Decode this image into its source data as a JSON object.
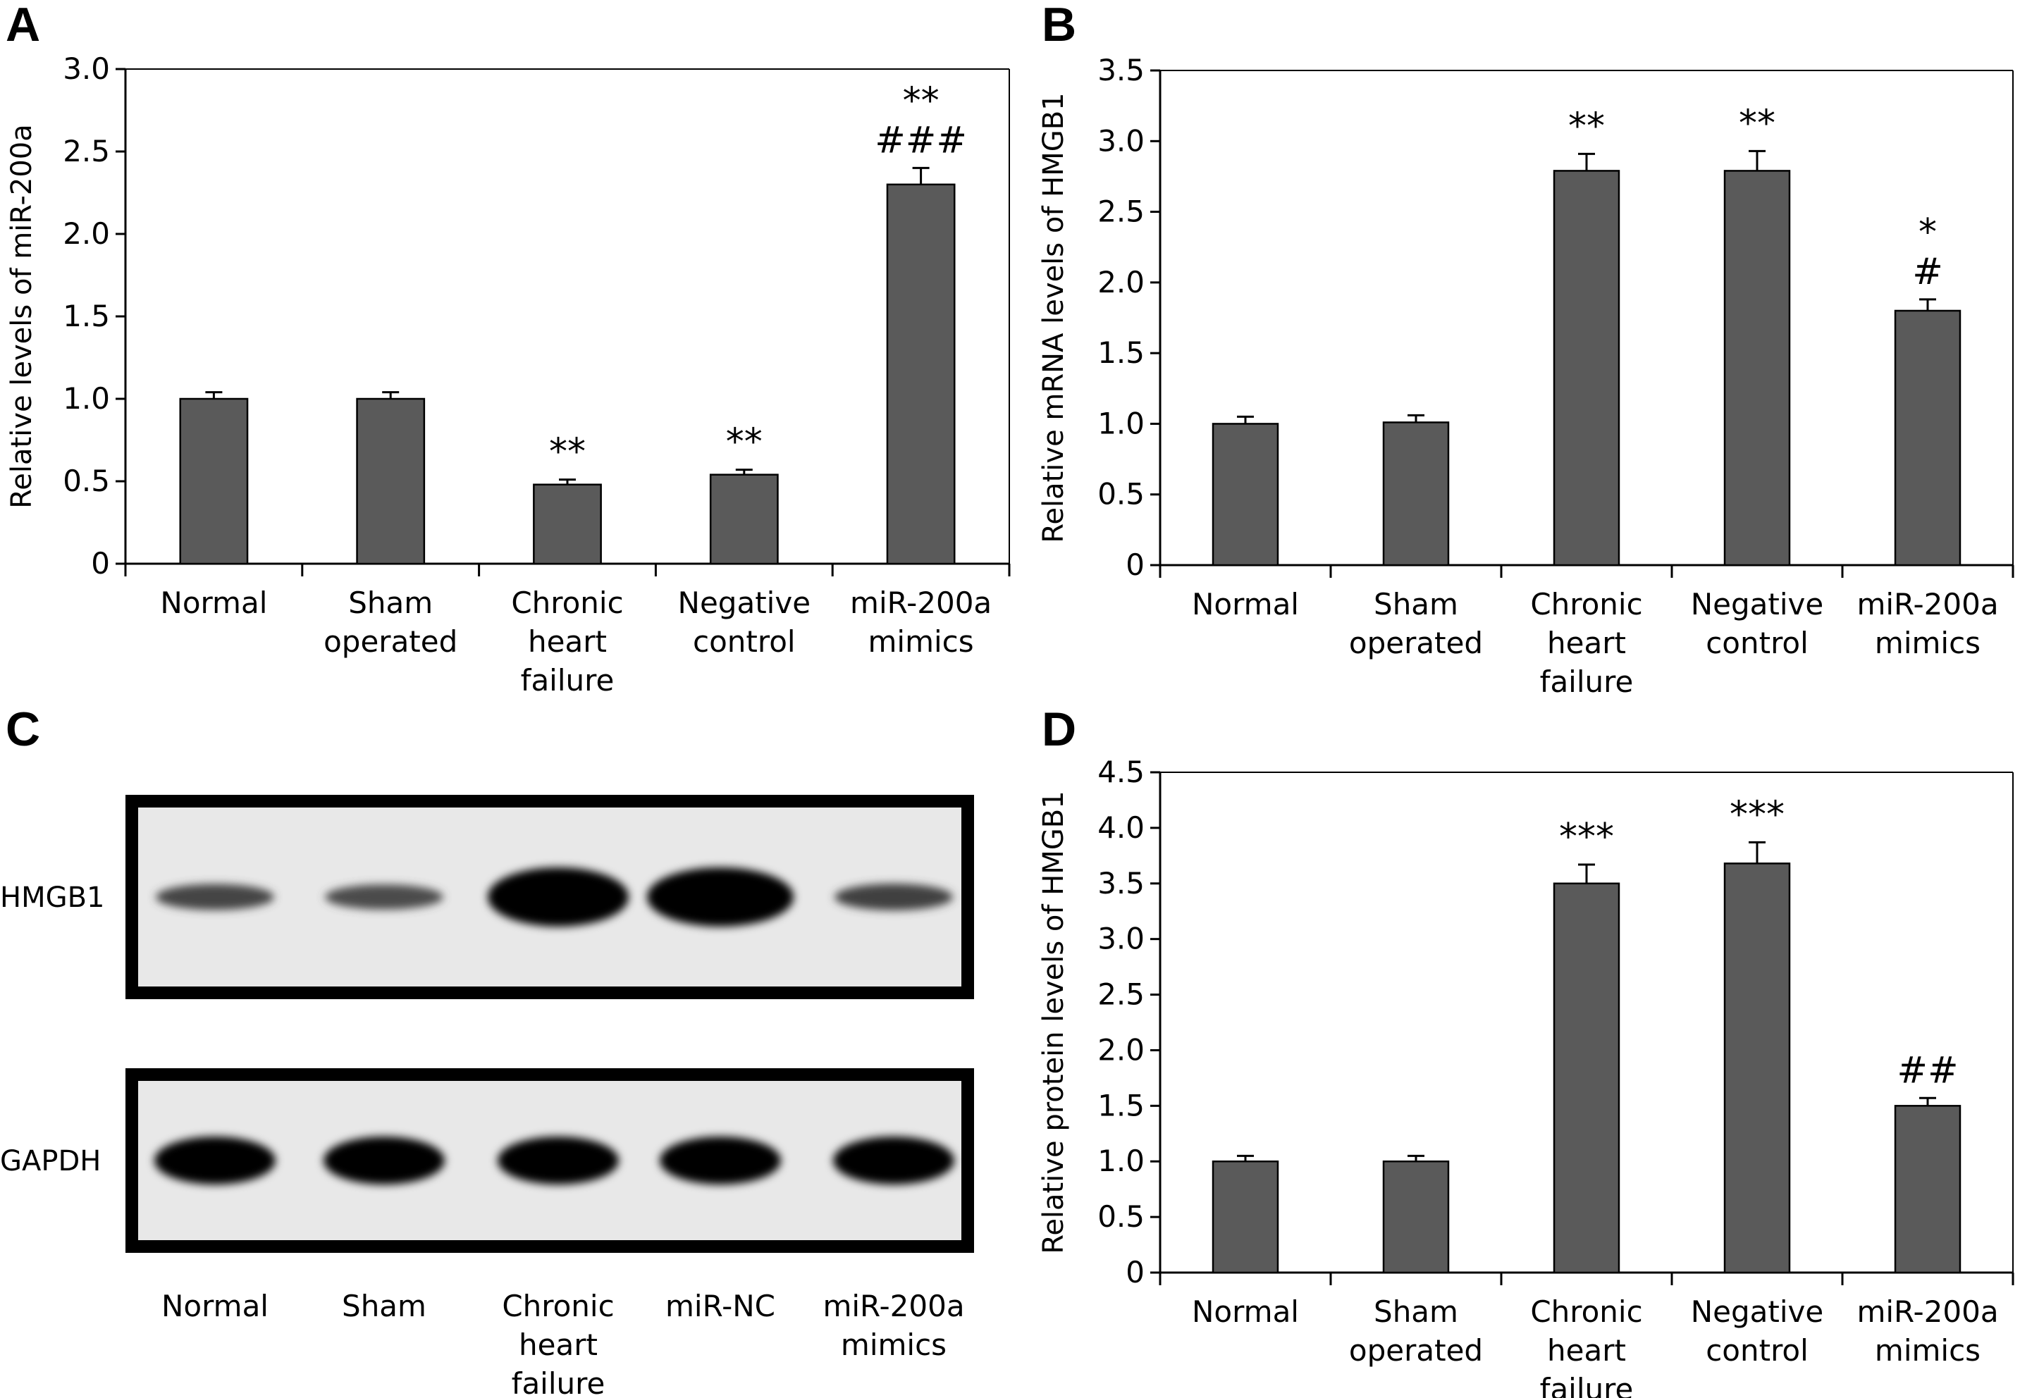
{
  "panels": {
    "a": {
      "letter": "A"
    },
    "b": {
      "letter": "B"
    },
    "c": {
      "letter": "C"
    },
    "d": {
      "letter": "D"
    }
  },
  "blot": {
    "rows": [
      {
        "label": "HMGB1",
        "intensity": [
          0.45,
          0.38,
          1.0,
          1.0,
          0.5
        ]
      },
      {
        "label": "GAPDH",
        "intensity": [
          1.0,
          1.0,
          1.0,
          1.0,
          1.0
        ]
      }
    ],
    "lanes": [
      [
        "Normal"
      ],
      [
        "Sham"
      ],
      [
        "Chronic",
        "heart",
        "failure"
      ],
      [
        "miR-NC"
      ],
      [
        "miR-200a",
        "mimics"
      ]
    ]
  },
  "chart_data": [
    {
      "type": "bar",
      "panel": "A",
      "categories": [
        [
          "Normal"
        ],
        [
          "Sham",
          "operated"
        ],
        [
          "Chronic",
          "heart",
          "failure"
        ],
        [
          "Negative",
          "control"
        ],
        [
          "miR-200a",
          "mimics"
        ]
      ],
      "values": [
        1.0,
        1.0,
        0.48,
        0.54,
        2.3
      ],
      "errors": [
        0.04,
        0.04,
        0.03,
        0.03,
        0.1
      ],
      "annotations": [
        [],
        [],
        [
          "**"
        ],
        [
          "**"
        ],
        [
          "**",
          "###"
        ]
      ],
      "ylabel": "Relative levels of miR-200a",
      "ylim": [
        0,
        3.0
      ],
      "yticks": [
        "0",
        "0.5",
        "1.0",
        "1.5",
        "2.0",
        "2.5",
        "3.0"
      ],
      "bar_color": "#5a5a5a"
    },
    {
      "type": "bar",
      "panel": "B",
      "categories": [
        [
          "Normal"
        ],
        [
          "Sham",
          "operated"
        ],
        [
          "Chronic",
          "heart",
          "failure"
        ],
        [
          "Negative",
          "control"
        ],
        [
          "miR-200a",
          "mimics"
        ]
      ],
      "values": [
        1.0,
        1.01,
        2.79,
        2.79,
        1.8
      ],
      "errors": [
        0.05,
        0.05,
        0.12,
        0.14,
        0.08
      ],
      "annotations": [
        [],
        [],
        [
          "**"
        ],
        [
          "**"
        ],
        [
          "*",
          "#"
        ]
      ],
      "ylabel": "Relative mRNA levels of HMGB1",
      "ylim": [
        0,
        3.5
      ],
      "yticks": [
        "0",
        "0.5",
        "1.0",
        "1.5",
        "2.0",
        "2.5",
        "3.0",
        "3.5"
      ],
      "bar_color": "#5a5a5a"
    },
    {
      "type": "bar",
      "panel": "D",
      "categories": [
        [
          "Normal"
        ],
        [
          "Sham",
          "operated"
        ],
        [
          "Chronic",
          "heart",
          "failure"
        ],
        [
          "Negative",
          "control"
        ],
        [
          "miR-200a",
          "mimics"
        ]
      ],
      "values": [
        1.0,
        1.0,
        3.5,
        3.68,
        1.5
      ],
      "errors": [
        0.05,
        0.05,
        0.17,
        0.19,
        0.07
      ],
      "annotations": [
        [],
        [],
        [
          "***"
        ],
        [
          "***"
        ],
        [
          "##"
        ]
      ],
      "ylabel": "Relative protein levels of HMGB1",
      "ylim": [
        0,
        4.5
      ],
      "yticks": [
        "0",
        "0.5",
        "1.0",
        "1.5",
        "2.0",
        "2.5",
        "3.0",
        "3.5",
        "4.0",
        "4.5"
      ],
      "bar_color": "#5a5a5a"
    }
  ]
}
